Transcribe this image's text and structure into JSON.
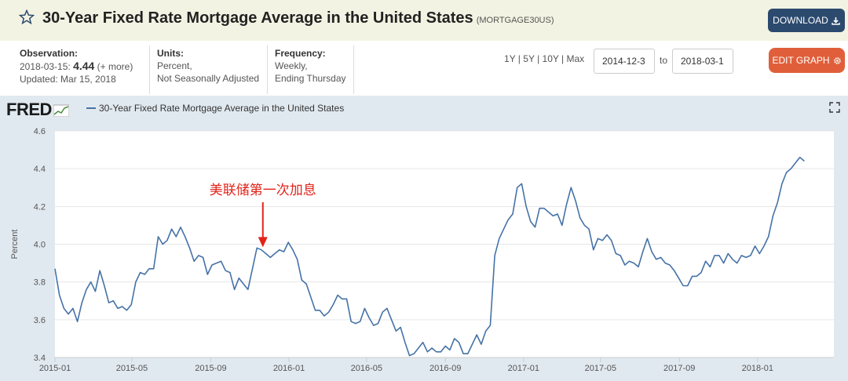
{
  "header": {
    "title": "30-Year Fixed Rate Mortgage Average in the United States",
    "series_id": "(MORTGAGE30US)",
    "download_label": "DOWNLOAD"
  },
  "meta": {
    "observation_label": "Observation:",
    "observation_date": "2018-03-15:",
    "observation_value": "4.44",
    "observation_more": "(+ more)",
    "updated": "Updated: Mar 15, 2018",
    "units_label": "Units:",
    "units_line1": "Percent,",
    "units_line2": "Not Seasonally Adjusted",
    "frequency_label": "Frequency:",
    "frequency_line1": "Weekly,",
    "frequency_line2": "Ending Thursday"
  },
  "controls": {
    "ranges": [
      "1Y",
      "5Y",
      "10Y",
      "Max"
    ],
    "start_date": "2014-12-3",
    "to_label": "to",
    "end_date": "2018-03-1",
    "edit_label": "EDIT GRAPH"
  },
  "chart_data": {
    "type": "line",
    "logo": "FRED",
    "legend": "30-Year Fixed Rate Mortgage Average in the United States",
    "ylabel": "Percent",
    "ylim": [
      3.4,
      4.6
    ],
    "yticks": [
      "3.4",
      "3.6",
      "3.8",
      "4.0",
      "4.2",
      "4.4",
      "4.6"
    ],
    "xticks": [
      "2015-01",
      "2015-05",
      "2015-09",
      "2016-01",
      "2016-05",
      "2016-09",
      "2017-01",
      "2017-05",
      "2017-09",
      "2018-01"
    ],
    "x_domain": [
      "2015-01-01",
      "2018-04-30"
    ],
    "grid": true,
    "line_color": "#4572a7",
    "annotation": {
      "text": "美联储第一次加息",
      "date": "2015-12-17",
      "value": 3.98,
      "color": "#e2231a"
    },
    "series": [
      {
        "values": [
          [
            "2015-01-01",
            3.87
          ],
          [
            "2015-01-08",
            3.73
          ],
          [
            "2015-01-15",
            3.66
          ],
          [
            "2015-01-22",
            3.63
          ],
          [
            "2015-01-29",
            3.66
          ],
          [
            "2015-02-05",
            3.59
          ],
          [
            "2015-02-12",
            3.69
          ],
          [
            "2015-02-19",
            3.76
          ],
          [
            "2015-02-26",
            3.8
          ],
          [
            "2015-03-05",
            3.75
          ],
          [
            "2015-03-12",
            3.86
          ],
          [
            "2015-03-19",
            3.78
          ],
          [
            "2015-03-26",
            3.69
          ],
          [
            "2015-04-02",
            3.7
          ],
          [
            "2015-04-09",
            3.66
          ],
          [
            "2015-04-16",
            3.67
          ],
          [
            "2015-04-23",
            3.65
          ],
          [
            "2015-04-30",
            3.68
          ],
          [
            "2015-05-07",
            3.8
          ],
          [
            "2015-05-14",
            3.85
          ],
          [
            "2015-05-21",
            3.84
          ],
          [
            "2015-05-28",
            3.87
          ],
          [
            "2015-06-04",
            3.87
          ],
          [
            "2015-06-11",
            4.04
          ],
          [
            "2015-06-18",
            4.0
          ],
          [
            "2015-06-25",
            4.02
          ],
          [
            "2015-07-02",
            4.08
          ],
          [
            "2015-07-09",
            4.04
          ],
          [
            "2015-07-16",
            4.09
          ],
          [
            "2015-07-23",
            4.04
          ],
          [
            "2015-07-30",
            3.98
          ],
          [
            "2015-08-06",
            3.91
          ],
          [
            "2015-08-13",
            3.94
          ],
          [
            "2015-08-20",
            3.93
          ],
          [
            "2015-08-27",
            3.84
          ],
          [
            "2015-09-03",
            3.89
          ],
          [
            "2015-09-10",
            3.9
          ],
          [
            "2015-09-17",
            3.91
          ],
          [
            "2015-09-24",
            3.86
          ],
          [
            "2015-10-01",
            3.85
          ],
          [
            "2015-10-08",
            3.76
          ],
          [
            "2015-10-15",
            3.82
          ],
          [
            "2015-10-22",
            3.79
          ],
          [
            "2015-10-29",
            3.76
          ],
          [
            "2015-11-05",
            3.87
          ],
          [
            "2015-11-12",
            3.98
          ],
          [
            "2015-11-19",
            3.97
          ],
          [
            "2015-11-26",
            3.95
          ],
          [
            "2015-12-03",
            3.93
          ],
          [
            "2015-12-10",
            3.95
          ],
          [
            "2015-12-17",
            3.97
          ],
          [
            "2015-12-24",
            3.96
          ],
          [
            "2015-12-31",
            4.01
          ],
          [
            "2016-01-07",
            3.97
          ],
          [
            "2016-01-14",
            3.92
          ],
          [
            "2016-01-21",
            3.81
          ],
          [
            "2016-01-28",
            3.79
          ],
          [
            "2016-02-04",
            3.72
          ],
          [
            "2016-02-11",
            3.65
          ],
          [
            "2016-02-18",
            3.65
          ],
          [
            "2016-02-25",
            3.62
          ],
          [
            "2016-03-03",
            3.64
          ],
          [
            "2016-03-10",
            3.68
          ],
          [
            "2016-03-17",
            3.73
          ],
          [
            "2016-03-24",
            3.71
          ],
          [
            "2016-03-31",
            3.71
          ],
          [
            "2016-04-07",
            3.59
          ],
          [
            "2016-04-14",
            3.58
          ],
          [
            "2016-04-21",
            3.59
          ],
          [
            "2016-04-28",
            3.66
          ],
          [
            "2016-05-05",
            3.61
          ],
          [
            "2016-05-12",
            3.57
          ],
          [
            "2016-05-19",
            3.58
          ],
          [
            "2016-05-26",
            3.64
          ],
          [
            "2016-06-02",
            3.66
          ],
          [
            "2016-06-09",
            3.6
          ],
          [
            "2016-06-16",
            3.54
          ],
          [
            "2016-06-23",
            3.56
          ],
          [
            "2016-06-30",
            3.48
          ],
          [
            "2016-07-07",
            3.41
          ],
          [
            "2016-07-14",
            3.42
          ],
          [
            "2016-07-21",
            3.45
          ],
          [
            "2016-07-28",
            3.48
          ],
          [
            "2016-08-04",
            3.43
          ],
          [
            "2016-08-11",
            3.45
          ],
          [
            "2016-08-18",
            3.43
          ],
          [
            "2016-08-25",
            3.43
          ],
          [
            "2016-09-01",
            3.46
          ],
          [
            "2016-09-08",
            3.44
          ],
          [
            "2016-09-15",
            3.5
          ],
          [
            "2016-09-22",
            3.48
          ],
          [
            "2016-09-29",
            3.42
          ],
          [
            "2016-10-06",
            3.42
          ],
          [
            "2016-10-13",
            3.47
          ],
          [
            "2016-10-20",
            3.52
          ],
          [
            "2016-10-27",
            3.47
          ],
          [
            "2016-11-03",
            3.54
          ],
          [
            "2016-11-10",
            3.57
          ],
          [
            "2016-11-17",
            3.94
          ],
          [
            "2016-11-24",
            4.03
          ],
          [
            "2016-12-01",
            4.08
          ],
          [
            "2016-12-08",
            4.13
          ],
          [
            "2016-12-15",
            4.16
          ],
          [
            "2016-12-22",
            4.3
          ],
          [
            "2016-12-29",
            4.32
          ],
          [
            "2017-01-05",
            4.2
          ],
          [
            "2017-01-12",
            4.12
          ],
          [
            "2017-01-19",
            4.09
          ],
          [
            "2017-01-26",
            4.19
          ],
          [
            "2017-02-02",
            4.19
          ],
          [
            "2017-02-09",
            4.17
          ],
          [
            "2017-02-16",
            4.15
          ],
          [
            "2017-02-23",
            4.16
          ],
          [
            "2017-03-02",
            4.1
          ],
          [
            "2017-03-09",
            4.21
          ],
          [
            "2017-03-16",
            4.3
          ],
          [
            "2017-03-23",
            4.23
          ],
          [
            "2017-03-30",
            4.14
          ],
          [
            "2017-04-06",
            4.1
          ],
          [
            "2017-04-13",
            4.08
          ],
          [
            "2017-04-20",
            3.97
          ],
          [
            "2017-04-27",
            4.03
          ],
          [
            "2017-05-04",
            4.02
          ],
          [
            "2017-05-11",
            4.05
          ],
          [
            "2017-05-18",
            4.02
          ],
          [
            "2017-05-25",
            3.95
          ],
          [
            "2017-06-01",
            3.94
          ],
          [
            "2017-06-08",
            3.89
          ],
          [
            "2017-06-15",
            3.91
          ],
          [
            "2017-06-22",
            3.9
          ],
          [
            "2017-06-29",
            3.88
          ],
          [
            "2017-07-06",
            3.96
          ],
          [
            "2017-07-13",
            4.03
          ],
          [
            "2017-07-20",
            3.96
          ],
          [
            "2017-07-27",
            3.92
          ],
          [
            "2017-08-03",
            3.93
          ],
          [
            "2017-08-10",
            3.9
          ],
          [
            "2017-08-17",
            3.89
          ],
          [
            "2017-08-24",
            3.86
          ],
          [
            "2017-08-31",
            3.82
          ],
          [
            "2017-09-07",
            3.78
          ],
          [
            "2017-09-14",
            3.78
          ],
          [
            "2017-09-21",
            3.83
          ],
          [
            "2017-09-28",
            3.83
          ],
          [
            "2017-10-05",
            3.85
          ],
          [
            "2017-10-12",
            3.91
          ],
          [
            "2017-10-19",
            3.88
          ],
          [
            "2017-10-26",
            3.94
          ],
          [
            "2017-11-02",
            3.94
          ],
          [
            "2017-11-09",
            3.9
          ],
          [
            "2017-11-16",
            3.95
          ],
          [
            "2017-11-23",
            3.92
          ],
          [
            "2017-11-30",
            3.9
          ],
          [
            "2017-12-07",
            3.94
          ],
          [
            "2017-12-14",
            3.93
          ],
          [
            "2017-12-21",
            3.94
          ],
          [
            "2017-12-28",
            3.99
          ],
          [
            "2018-01-04",
            3.95
          ],
          [
            "2018-01-11",
            3.99
          ],
          [
            "2018-01-18",
            4.04
          ],
          [
            "2018-01-25",
            4.15
          ],
          [
            "2018-02-01",
            4.22
          ],
          [
            "2018-02-08",
            4.32
          ],
          [
            "2018-02-15",
            4.38
          ],
          [
            "2018-02-22",
            4.4
          ],
          [
            "2018-03-01",
            4.43
          ],
          [
            "2018-03-08",
            4.46
          ],
          [
            "2018-03-15",
            4.44
          ]
        ]
      }
    ]
  }
}
